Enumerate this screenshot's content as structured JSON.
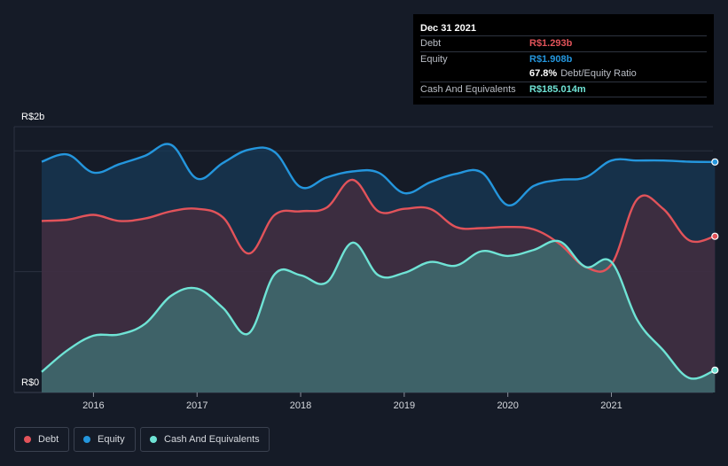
{
  "tooltip": {
    "date": "Dec 31 2021",
    "debt_label": "Debt",
    "debt_value": "R$1.293b",
    "equity_label": "Equity",
    "equity_value": "R$1.908b",
    "ratio_value": "67.8%",
    "ratio_label": "Debt/Equity Ratio",
    "cash_label": "Cash And Equivalents",
    "cash_value": "R$185.014m"
  },
  "legend": {
    "debt": "Debt",
    "equity": "Equity",
    "cash": "Cash And Equivalents"
  },
  "colors": {
    "debt": "#e2535a",
    "equity": "#2496dd",
    "cash": "#6fe3d5",
    "background": "#151b27"
  },
  "chart_data": {
    "type": "area",
    "title": "",
    "xlabel": "",
    "ylabel": "",
    "y_axis_labels": [
      "R$2b",
      "R$0"
    ],
    "x_tick_labels": [
      "2016",
      "2017",
      "2018",
      "2019",
      "2020",
      "2021"
    ],
    "x_ticks": [
      2016,
      2017,
      2018,
      2019,
      2020,
      2021
    ],
    "xlim": [
      2015.5,
      2022.0
    ],
    "ylim": [
      0,
      2.2
    ],
    "series": [
      {
        "name": "Equity",
        "x": [
          2015.5,
          2015.75,
          2016.0,
          2016.25,
          2016.5,
          2016.75,
          2017.0,
          2017.25,
          2017.5,
          2017.75,
          2018.0,
          2018.25,
          2018.5,
          2018.75,
          2019.0,
          2019.25,
          2019.5,
          2019.75,
          2020.0,
          2020.25,
          2020.5,
          2020.75,
          2021.0,
          2021.25,
          2021.5,
          2021.75,
          2022.0
        ],
        "values": [
          1.91,
          1.97,
          1.82,
          1.89,
          1.96,
          2.05,
          1.77,
          1.9,
          2.01,
          1.99,
          1.7,
          1.78,
          1.83,
          1.82,
          1.65,
          1.74,
          1.81,
          1.82,
          1.55,
          1.71,
          1.76,
          1.78,
          1.92,
          1.92,
          1.92,
          1.91,
          1.908
        ]
      },
      {
        "name": "Debt",
        "x": [
          2015.5,
          2015.75,
          2016.0,
          2016.25,
          2016.5,
          2016.75,
          2017.0,
          2017.25,
          2017.5,
          2017.75,
          2018.0,
          2018.25,
          2018.5,
          2018.75,
          2019.0,
          2019.25,
          2019.5,
          2019.75,
          2020.0,
          2020.25,
          2020.5,
          2020.75,
          2021.0,
          2021.25,
          2021.5,
          2021.75,
          2022.0
        ],
        "values": [
          1.42,
          1.43,
          1.47,
          1.42,
          1.44,
          1.5,
          1.52,
          1.45,
          1.15,
          1.47,
          1.5,
          1.53,
          1.76,
          1.5,
          1.52,
          1.52,
          1.37,
          1.36,
          1.37,
          1.35,
          1.23,
          1.04,
          1.06,
          1.6,
          1.52,
          1.26,
          1.293
        ]
      },
      {
        "name": "Cash And Equivalents",
        "x": [
          2015.5,
          2015.75,
          2016.0,
          2016.25,
          2016.5,
          2016.75,
          2017.0,
          2017.25,
          2017.5,
          2017.75,
          2018.0,
          2018.25,
          2018.5,
          2018.75,
          2019.0,
          2019.25,
          2019.5,
          2019.75,
          2020.0,
          2020.25,
          2020.5,
          2020.75,
          2021.0,
          2021.25,
          2021.5,
          2021.75,
          2022.0
        ],
        "values": [
          0.17,
          0.35,
          0.47,
          0.48,
          0.57,
          0.8,
          0.86,
          0.7,
          0.49,
          0.98,
          0.97,
          0.91,
          1.24,
          0.97,
          0.99,
          1.08,
          1.05,
          1.17,
          1.13,
          1.18,
          1.25,
          1.04,
          1.08,
          0.6,
          0.35,
          0.12,
          0.185
        ]
      }
    ],
    "legend": [
      "Debt",
      "Equity",
      "Cash And Equivalents"
    ],
    "grid": true
  }
}
